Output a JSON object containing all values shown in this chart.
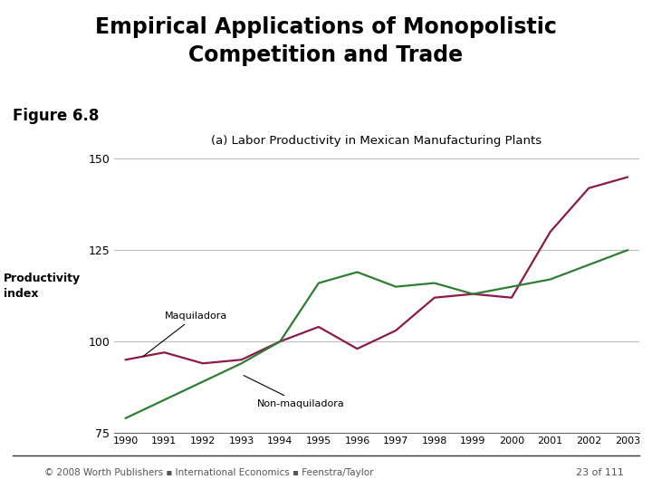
{
  "title_main": "Empirical Applications of Monopolistic\nCompetition and Trade",
  "figure_label": "Figure 6.8",
  "chart_title": "(a) Labor Productivity in Mexican Manufacturing Plants",
  "ylabel_line1": "Productivity",
  "ylabel_line2": "index",
  "title_bg_color": "#4d6bbf",
  "title_text_color": "#000000",
  "years": [
    1990,
    1991,
    1992,
    1993,
    1994,
    1995,
    1996,
    1997,
    1998,
    1999,
    2000,
    2001,
    2002,
    2003
  ],
  "maquiladora": [
    95,
    97,
    94,
    95,
    100,
    104,
    98,
    103,
    112,
    113,
    112,
    130,
    142,
    145
  ],
  "non_maquiladora": [
    79,
    84,
    89,
    94,
    100,
    116,
    119,
    115,
    116,
    113,
    115,
    117,
    121,
    125
  ],
  "maquiladora_color": "#8b1a4a",
  "non_maquiladora_color": "#2e7d32",
  "ylim": [
    75,
    152
  ],
  "yticks": [
    75,
    100,
    125,
    150
  ],
  "xlim_min": 1990,
  "xlim_max": 2003,
  "grid_color": "#bbbbbb",
  "bg_color": "#ffffff",
  "footer_text": "© 2008 Worth Publishers ▪ International Economics ▪ Feenstra/Taylor",
  "page_text": "23 of 111"
}
